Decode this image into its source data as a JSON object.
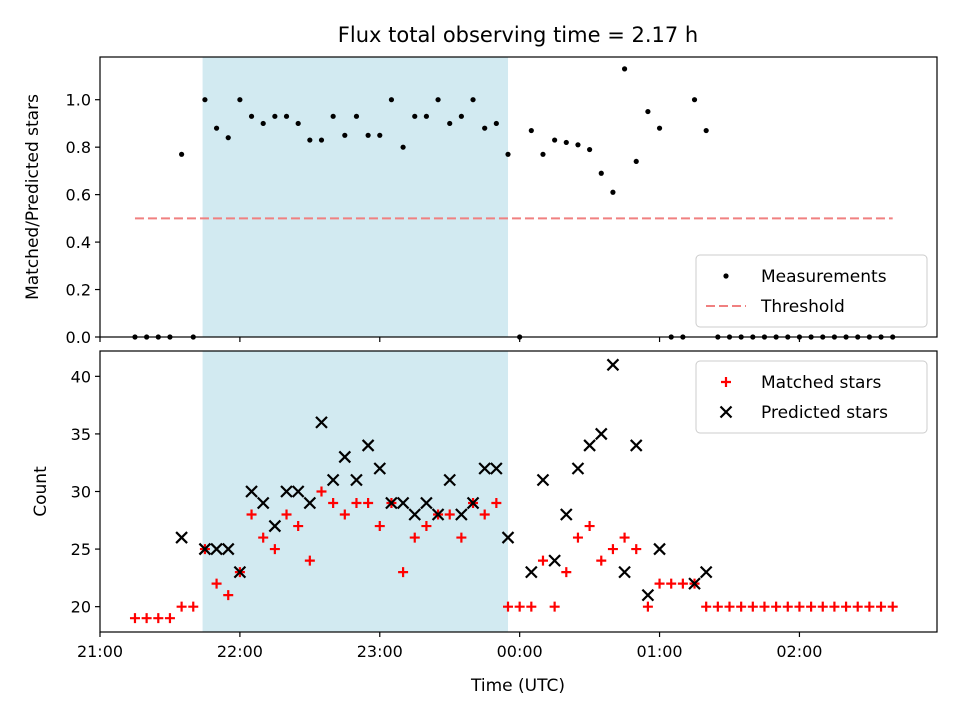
{
  "figure": {
    "title": "Flux total observing time = 2.17 h",
    "xlabel": "Time (UTC)"
  },
  "chart_data": [
    {
      "type": "scatter",
      "name": "ratio-panel",
      "ylabel": "Matched/Predicted stars",
      "ylim": [
        0,
        1.18
      ],
      "yticks": [
        0.0,
        0.2,
        0.4,
        0.6,
        0.8,
        1.0
      ],
      "ytick_labels": [
        "0.0",
        "0.2",
        "0.4",
        "0.6",
        "0.8",
        "1.0"
      ],
      "xlim": [
        "21:00",
        "02:59"
      ],
      "shaded_span": [
        "21:44",
        "23:55"
      ],
      "shade_color": "#add8e6",
      "threshold": {
        "label": "Threshold",
        "y": 0.5,
        "x_from": "21:15",
        "x_to": "02:40",
        "color": "#f08080"
      },
      "series": [
        {
          "name": "Measurements",
          "color": "#000000",
          "marker": "dot",
          "points": [
            [
              "21:15",
              0
            ],
            [
              "21:20",
              0
            ],
            [
              "21:25",
              0
            ],
            [
              "21:30",
              0
            ],
            [
              "21:35",
              0.77
            ],
            [
              "21:40",
              0
            ],
            [
              "21:45",
              1.0
            ],
            [
              "21:50",
              0.88
            ],
            [
              "21:55",
              0.84
            ],
            [
              "22:00",
              1.0
            ],
            [
              "22:05",
              0.93
            ],
            [
              "22:10",
              0.9
            ],
            [
              "22:15",
              0.93
            ],
            [
              "22:20",
              0.93
            ],
            [
              "22:25",
              0.9
            ],
            [
              "22:30",
              0.83
            ],
            [
              "22:35",
              0.83
            ],
            [
              "22:40",
              0.93
            ],
            [
              "22:45",
              0.85
            ],
            [
              "22:50",
              0.93
            ],
            [
              "22:55",
              0.85
            ],
            [
              "23:00",
              0.85
            ],
            [
              "23:05",
              1.0
            ],
            [
              "23:10",
              0.8
            ],
            [
              "23:15",
              0.93
            ],
            [
              "23:20",
              0.93
            ],
            [
              "23:25",
              1.0
            ],
            [
              "23:30",
              0.9
            ],
            [
              "23:35",
              0.93
            ],
            [
              "23:40",
              1.0
            ],
            [
              "23:45",
              0.88
            ],
            [
              "23:50",
              0.9
            ],
            [
              "23:55",
              0.77
            ],
            [
              "00:00",
              0
            ],
            [
              "00:05",
              0.87
            ],
            [
              "00:10",
              0.77
            ],
            [
              "00:15",
              0.83
            ],
            [
              "00:20",
              0.82
            ],
            [
              "00:25",
              0.81
            ],
            [
              "00:30",
              0.79
            ],
            [
              "00:35",
              0.69
            ],
            [
              "00:40",
              0.61
            ],
            [
              "00:45",
              1.13
            ],
            [
              "00:50",
              0.74
            ],
            [
              "00:55",
              0.95
            ],
            [
              "01:00",
              0.88
            ],
            [
              "01:05",
              0
            ],
            [
              "01:10",
              0
            ],
            [
              "01:15",
              1.0
            ],
            [
              "01:20",
              0.87
            ],
            [
              "01:25",
              0
            ],
            [
              "01:30",
              0
            ],
            [
              "01:35",
              0
            ],
            [
              "01:40",
              0
            ],
            [
              "01:45",
              0
            ],
            [
              "01:50",
              0
            ],
            [
              "01:55",
              0
            ],
            [
              "02:00",
              0
            ],
            [
              "02:05",
              0
            ],
            [
              "02:10",
              0
            ],
            [
              "02:15",
              0
            ],
            [
              "02:20",
              0
            ],
            [
              "02:25",
              0
            ],
            [
              "02:30",
              0
            ],
            [
              "02:35",
              0
            ],
            [
              "02:40",
              0
            ]
          ]
        }
      ],
      "legend": {
        "location": "lower right",
        "entries": [
          "Measurements",
          "Threshold"
        ]
      }
    },
    {
      "type": "scatter",
      "name": "count-panel",
      "ylabel": "Count",
      "ylim": [
        17.8,
        42.2
      ],
      "yticks": [
        20,
        25,
        30,
        35,
        40
      ],
      "ytick_labels": [
        "20",
        "25",
        "30",
        "35",
        "40"
      ],
      "xlim": [
        "21:00",
        "02:59"
      ],
      "xticks": [
        "21:00",
        "22:00",
        "23:00",
        "00:00",
        "01:00",
        "02:00"
      ],
      "xtick_labels": [
        "21:00",
        "22:00",
        "23:00",
        "00:00",
        "01:00",
        "02:00"
      ],
      "shaded_span": [
        "21:44",
        "23:55"
      ],
      "shade_color": "#add8e6",
      "series": [
        {
          "name": "Matched stars",
          "color": "#ff0000",
          "marker": "plus",
          "points": [
            [
              "21:15",
              19
            ],
            [
              "21:20",
              19
            ],
            [
              "21:25",
              19
            ],
            [
              "21:30",
              19
            ],
            [
              "21:35",
              20
            ],
            [
              "21:40",
              20
            ],
            [
              "21:45",
              25
            ],
            [
              "21:50",
              22
            ],
            [
              "21:55",
              21
            ],
            [
              "22:00",
              23
            ],
            [
              "22:05",
              28
            ],
            [
              "22:10",
              26
            ],
            [
              "22:15",
              25
            ],
            [
              "22:20",
              28
            ],
            [
              "22:25",
              27
            ],
            [
              "22:30",
              24
            ],
            [
              "22:35",
              30
            ],
            [
              "22:40",
              29
            ],
            [
              "22:45",
              28
            ],
            [
              "22:50",
              29
            ],
            [
              "22:55",
              29
            ],
            [
              "23:00",
              27
            ],
            [
              "23:05",
              29
            ],
            [
              "23:10",
              23
            ],
            [
              "23:15",
              26
            ],
            [
              "23:20",
              27
            ],
            [
              "23:25",
              28
            ],
            [
              "23:30",
              28
            ],
            [
              "23:35",
              26
            ],
            [
              "23:40",
              29
            ],
            [
              "23:45",
              28
            ],
            [
              "23:50",
              29
            ],
            [
              "23:55",
              20
            ],
            [
              "00:00",
              20
            ],
            [
              "00:05",
              20
            ],
            [
              "00:10",
              24
            ],
            [
              "00:15",
              20
            ],
            [
              "00:20",
              23
            ],
            [
              "00:25",
              26
            ],
            [
              "00:30",
              27
            ],
            [
              "00:35",
              24
            ],
            [
              "00:40",
              25
            ],
            [
              "00:45",
              26
            ],
            [
              "00:50",
              25
            ],
            [
              "00:55",
              20
            ],
            [
              "01:00",
              22
            ],
            [
              "01:05",
              22
            ],
            [
              "01:10",
              22
            ],
            [
              "01:15",
              22
            ],
            [
              "01:20",
              20
            ],
            [
              "01:25",
              20
            ],
            [
              "01:30",
              20
            ],
            [
              "01:35",
              20
            ],
            [
              "01:40",
              20
            ],
            [
              "01:45",
              20
            ],
            [
              "01:50",
              20
            ],
            [
              "01:55",
              20
            ],
            [
              "02:00",
              20
            ],
            [
              "02:05",
              20
            ],
            [
              "02:10",
              20
            ],
            [
              "02:15",
              20
            ],
            [
              "02:20",
              20
            ],
            [
              "02:25",
              20
            ],
            [
              "02:30",
              20
            ],
            [
              "02:35",
              20
            ],
            [
              "02:40",
              20
            ]
          ]
        },
        {
          "name": "Predicted stars",
          "color": "#000000",
          "marker": "x",
          "points": [
            [
              "21:35",
              26
            ],
            [
              "21:45",
              25
            ],
            [
              "21:50",
              25
            ],
            [
              "21:55",
              25
            ],
            [
              "22:00",
              23
            ],
            [
              "22:05",
              30
            ],
            [
              "22:10",
              29
            ],
            [
              "22:15",
              27
            ],
            [
              "22:20",
              30
            ],
            [
              "22:25",
              30
            ],
            [
              "22:30",
              29
            ],
            [
              "22:35",
              36
            ],
            [
              "22:40",
              31
            ],
            [
              "22:45",
              33
            ],
            [
              "22:50",
              31
            ],
            [
              "22:55",
              34
            ],
            [
              "23:00",
              32
            ],
            [
              "23:05",
              29
            ],
            [
              "23:10",
              29
            ],
            [
              "23:15",
              28
            ],
            [
              "23:20",
              29
            ],
            [
              "23:25",
              28
            ],
            [
              "23:30",
              31
            ],
            [
              "23:35",
              28
            ],
            [
              "23:40",
              29
            ],
            [
              "23:45",
              32
            ],
            [
              "23:50",
              32
            ],
            [
              "23:55",
              26
            ],
            [
              "00:05",
              23
            ],
            [
              "00:10",
              31
            ],
            [
              "00:15",
              24
            ],
            [
              "00:20",
              28
            ],
            [
              "00:25",
              32
            ],
            [
              "00:30",
              34
            ],
            [
              "00:35",
              35
            ],
            [
              "00:40",
              41
            ],
            [
              "00:45",
              23
            ],
            [
              "00:50",
              34
            ],
            [
              "00:55",
              21
            ],
            [
              "01:00",
              25
            ],
            [
              "01:15",
              22
            ],
            [
              "01:20",
              23
            ]
          ]
        }
      ],
      "legend": {
        "location": "upper right",
        "entries": [
          "Matched stars",
          "Predicted stars"
        ]
      }
    }
  ]
}
